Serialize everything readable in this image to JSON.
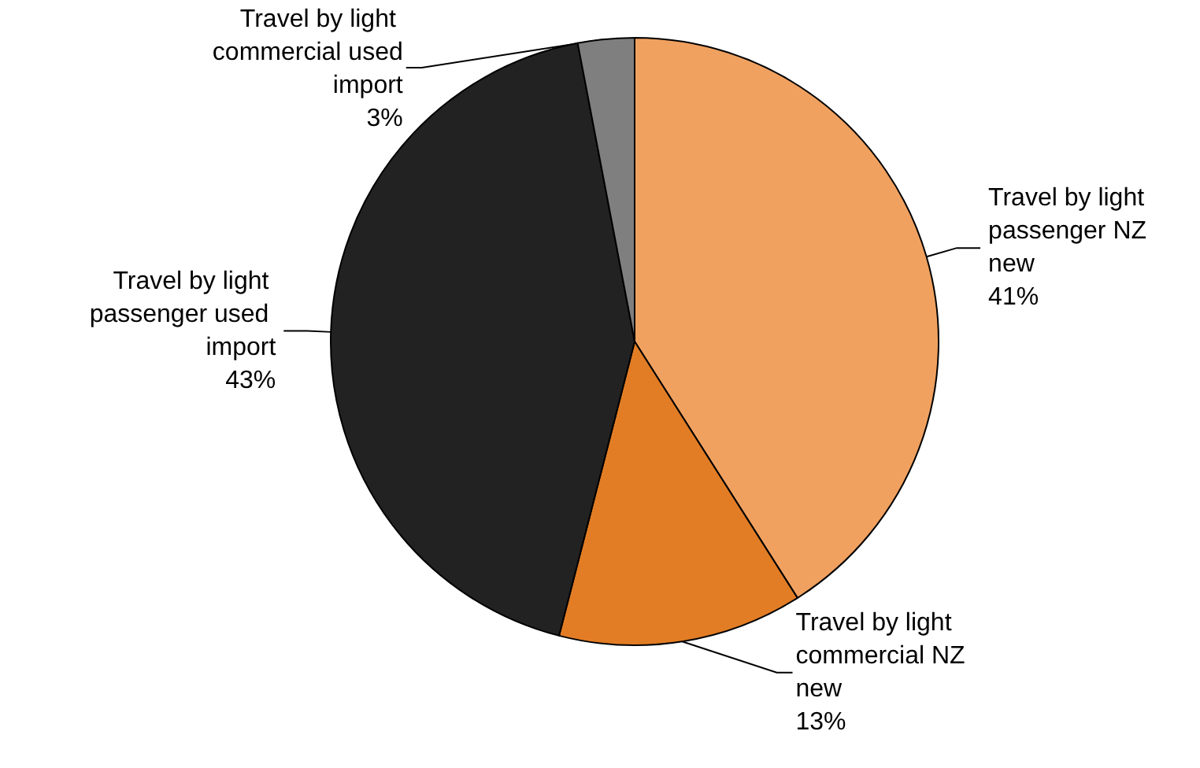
{
  "chart_data": {
    "type": "pie",
    "categories": [
      "Travel by light passenger NZ new",
      "Travel by light commercial NZ new",
      "Travel by light passenger used import",
      "Travel by light commercial used import"
    ],
    "values": [
      41,
      13,
      43,
      3
    ],
    "value_labels": [
      "41%",
      "13%",
      "43%",
      "3%"
    ],
    "colors": [
      "#f0a160",
      "#e27d25",
      "#222222",
      "#7f7f7f"
    ],
    "legend": false
  }
}
